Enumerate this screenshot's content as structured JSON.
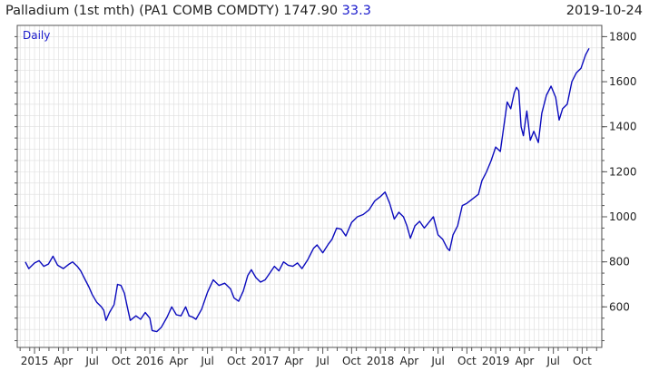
{
  "header": {
    "title": "Palladium (1st mth)  (PA1 COMB COMDTY) 1747.90",
    "change": "33.3",
    "date": "2019-10-24"
  },
  "colors": {
    "line": "#0b0bbd",
    "grid": "#dddddd",
    "axis": "#555555",
    "daily_text": "#1a1acc"
  },
  "chart_data": {
    "type": "line",
    "frequency_label": "Daily",
    "ylim": [
      420,
      1850
    ],
    "yticks": [
      600,
      800,
      1000,
      1200,
      1400,
      1600,
      1800
    ],
    "xlim": [
      2014.85,
      2019.92
    ],
    "xticks": [
      {
        "label": "2015",
        "x": 2015.0
      },
      {
        "label": "Apr",
        "x": 2015.25
      },
      {
        "label": "Jul",
        "x": 2015.5
      },
      {
        "label": "Oct",
        "x": 2015.75
      },
      {
        "label": "2016",
        "x": 2016.0
      },
      {
        "label": "Apr",
        "x": 2016.25
      },
      {
        "label": "Jul",
        "x": 2016.5
      },
      {
        "label": "Oct",
        "x": 2016.75
      },
      {
        "label": "2017",
        "x": 2017.0
      },
      {
        "label": "Apr",
        "x": 2017.25
      },
      {
        "label": "Jul",
        "x": 2017.5
      },
      {
        "label": "Oct",
        "x": 2017.75
      },
      {
        "label": "2018",
        "x": 2018.0
      },
      {
        "label": "Apr",
        "x": 2018.25
      },
      {
        "label": "Jul",
        "x": 2018.5
      },
      {
        "label": "Oct",
        "x": 2018.75
      },
      {
        "label": "2019",
        "x": 2019.0
      },
      {
        "label": "Apr",
        "x": 2019.25
      },
      {
        "label": "Jul",
        "x": 2019.5
      },
      {
        "label": "Oct",
        "x": 2019.75
      }
    ],
    "series": [
      {
        "points": [
          [
            2014.92,
            800
          ],
          [
            2014.95,
            770
          ],
          [
            2015.0,
            795
          ],
          [
            2015.04,
            805
          ],
          [
            2015.08,
            780
          ],
          [
            2015.12,
            790
          ],
          [
            2015.16,
            825
          ],
          [
            2015.2,
            785
          ],
          [
            2015.25,
            770
          ],
          [
            2015.3,
            790
          ],
          [
            2015.33,
            800
          ],
          [
            2015.37,
            780
          ],
          [
            2015.4,
            760
          ],
          [
            2015.44,
            720
          ],
          [
            2015.47,
            690
          ],
          [
            2015.5,
            655
          ],
          [
            2015.54,
            620
          ],
          [
            2015.58,
            600
          ],
          [
            2015.6,
            585
          ],
          [
            2015.62,
            540
          ],
          [
            2015.65,
            575
          ],
          [
            2015.69,
            610
          ],
          [
            2015.72,
            700
          ],
          [
            2015.75,
            695
          ],
          [
            2015.78,
            660
          ],
          [
            2015.8,
            610
          ],
          [
            2015.83,
            540
          ],
          [
            2015.88,
            560
          ],
          [
            2015.92,
            545
          ],
          [
            2015.96,
            575
          ],
          [
            2016.0,
            550
          ],
          [
            2016.02,
            495
          ],
          [
            2016.06,
            490
          ],
          [
            2016.1,
            510
          ],
          [
            2016.15,
            555
          ],
          [
            2016.19,
            600
          ],
          [
            2016.23,
            565
          ],
          [
            2016.27,
            560
          ],
          [
            2016.31,
            600
          ],
          [
            2016.34,
            560
          ],
          [
            2016.37,
            555
          ],
          [
            2016.4,
            545
          ],
          [
            2016.45,
            590
          ],
          [
            2016.5,
            665
          ],
          [
            2016.55,
            720
          ],
          [
            2016.6,
            695
          ],
          [
            2016.65,
            705
          ],
          [
            2016.7,
            680
          ],
          [
            2016.73,
            640
          ],
          [
            2016.77,
            625
          ],
          [
            2016.81,
            670
          ],
          [
            2016.85,
            740
          ],
          [
            2016.88,
            765
          ],
          [
            2016.92,
            730
          ],
          [
            2016.96,
            710
          ],
          [
            2017.0,
            720
          ],
          [
            2017.04,
            750
          ],
          [
            2017.08,
            780
          ],
          [
            2017.12,
            760
          ],
          [
            2017.16,
            800
          ],
          [
            2017.2,
            785
          ],
          [
            2017.24,
            780
          ],
          [
            2017.28,
            795
          ],
          [
            2017.32,
            770
          ],
          [
            2017.37,
            810
          ],
          [
            2017.42,
            860
          ],
          [
            2017.45,
            875
          ],
          [
            2017.5,
            840
          ],
          [
            2017.55,
            880
          ],
          [
            2017.58,
            900
          ],
          [
            2017.62,
            950
          ],
          [
            2017.66,
            945
          ],
          [
            2017.7,
            915
          ],
          [
            2017.75,
            975
          ],
          [
            2017.8,
            1000
          ],
          [
            2017.85,
            1010
          ],
          [
            2017.9,
            1030
          ],
          [
            2017.95,
            1070
          ],
          [
            2018.0,
            1090
          ],
          [
            2018.04,
            1110
          ],
          [
            2018.08,
            1060
          ],
          [
            2018.12,
            990
          ],
          [
            2018.16,
            1020
          ],
          [
            2018.2,
            1000
          ],
          [
            2018.23,
            960
          ],
          [
            2018.26,
            905
          ],
          [
            2018.3,
            960
          ],
          [
            2018.34,
            980
          ],
          [
            2018.38,
            950
          ],
          [
            2018.42,
            975
          ],
          [
            2018.46,
            1000
          ],
          [
            2018.5,
            920
          ],
          [
            2018.54,
            900
          ],
          [
            2018.58,
            860
          ],
          [
            2018.6,
            850
          ],
          [
            2018.63,
            920
          ],
          [
            2018.67,
            960
          ],
          [
            2018.71,
            1050
          ],
          [
            2018.75,
            1060
          ],
          [
            2018.8,
            1080
          ],
          [
            2018.85,
            1100
          ],
          [
            2018.88,
            1160
          ],
          [
            2018.92,
            1200
          ],
          [
            2018.96,
            1250
          ],
          [
            2019.0,
            1310
          ],
          [
            2019.04,
            1290
          ],
          [
            2019.07,
            1400
          ],
          [
            2019.1,
            1510
          ],
          [
            2019.13,
            1480
          ],
          [
            2019.16,
            1550
          ],
          [
            2019.18,
            1575
          ],
          [
            2019.2,
            1560
          ],
          [
            2019.22,
            1400
          ],
          [
            2019.24,
            1360
          ],
          [
            2019.27,
            1470
          ],
          [
            2019.3,
            1340
          ],
          [
            2019.33,
            1380
          ],
          [
            2019.37,
            1330
          ],
          [
            2019.4,
            1460
          ],
          [
            2019.44,
            1540
          ],
          [
            2019.48,
            1580
          ],
          [
            2019.52,
            1530
          ],
          [
            2019.55,
            1430
          ],
          [
            2019.58,
            1480
          ],
          [
            2019.62,
            1500
          ],
          [
            2019.66,
            1600
          ],
          [
            2019.7,
            1640
          ],
          [
            2019.74,
            1660
          ],
          [
            2019.78,
            1720
          ],
          [
            2019.81,
            1748
          ]
        ]
      }
    ]
  }
}
